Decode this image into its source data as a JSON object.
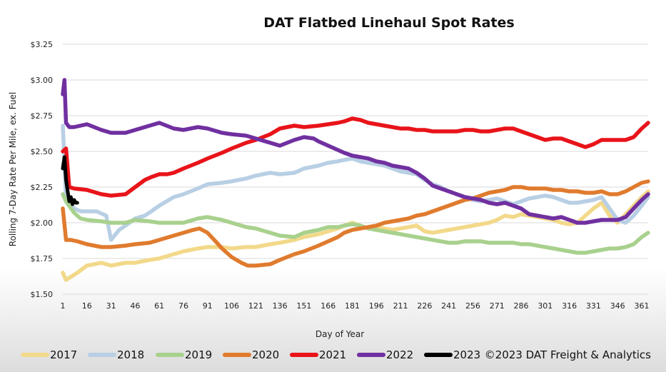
{
  "chart_data": {
    "type": "line",
    "title": "DAT Flatbed Linehaul Spot Rates",
    "xlabel": "Day of Year",
    "ylabel": "Rolling 7-Day Rate Per Mile, ex. Fuel",
    "xlim": [
      1,
      365
    ],
    "ylim": [
      1.5,
      3.25
    ],
    "x_ticks": [
      1,
      16,
      31,
      46,
      61,
      76,
      91,
      106,
      121,
      136,
      151,
      166,
      181,
      196,
      211,
      226,
      241,
      256,
      271,
      286,
      301,
      316,
      331,
      346,
      361
    ],
    "y_ticks": [
      {
        "value": 1.5,
        "label": "$1.50"
      },
      {
        "value": 1.75,
        "label": "$1.75"
      },
      {
        "value": 2.0,
        "label": "$2.00"
      },
      {
        "value": 2.25,
        "label": "$2.25"
      },
      {
        "value": 2.5,
        "label": "$2.50"
      },
      {
        "value": 2.75,
        "label": "$2.75"
      },
      {
        "value": 3.0,
        "label": "$3.00"
      },
      {
        "value": 3.25,
        "label": "$3.25"
      }
    ],
    "grid": true,
    "series": [
      {
        "name": "2017",
        "color": "#f2d98a",
        "x": [
          1,
          3,
          10,
          16,
          25,
          31,
          40,
          46,
          55,
          61,
          70,
          76,
          85,
          91,
          100,
          106,
          115,
          121,
          130,
          136,
          145,
          151,
          160,
          166,
          172,
          176,
          181,
          186,
          191,
          196,
          201,
          206,
          211,
          216,
          221,
          226,
          231,
          236,
          241,
          246,
          251,
          256,
          261,
          266,
          271,
          276,
          281,
          286,
          291,
          296,
          301,
          306,
          311,
          316,
          321,
          326,
          331,
          336,
          341,
          346,
          351,
          356,
          361,
          365
        ],
        "values": [
          1.65,
          1.6,
          1.65,
          1.7,
          1.72,
          1.7,
          1.72,
          1.72,
          1.74,
          1.75,
          1.78,
          1.8,
          1.82,
          1.83,
          1.83,
          1.82,
          1.83,
          1.83,
          1.85,
          1.86,
          1.88,
          1.9,
          1.92,
          1.94,
          1.96,
          1.98,
          2.0,
          1.98,
          1.96,
          1.97,
          1.96,
          1.95,
          1.96,
          1.97,
          1.98,
          1.94,
          1.93,
          1.94,
          1.95,
          1.96,
          1.97,
          1.98,
          1.99,
          2.0,
          2.02,
          2.05,
          2.04,
          2.06,
          2.05,
          2.04,
          2.03,
          2.02,
          2.0,
          1.99,
          2.0,
          2.05,
          2.1,
          2.14,
          2.05,
          2.0,
          2.06,
          2.12,
          2.18,
          2.22
        ]
      },
      {
        "name": "2018",
        "color": "#b8cfe4",
        "x": [
          1,
          3,
          8,
          12,
          16,
          22,
          28,
          31,
          36,
          40,
          46,
          52,
          56,
          61,
          70,
          76,
          85,
          91,
          100,
          106,
          115,
          121,
          130,
          136,
          145,
          151,
          160,
          166,
          172,
          176,
          181,
          186,
          191,
          196,
          201,
          206,
          211,
          216,
          221,
          226,
          231,
          236,
          241,
          246,
          251,
          256,
          261,
          266,
          271,
          276,
          281,
          286,
          291,
          296,
          301,
          306,
          311,
          316,
          321,
          326,
          331,
          336,
          341,
          346,
          351,
          356,
          361,
          365
        ],
        "values": [
          2.68,
          2.18,
          2.1,
          2.08,
          2.08,
          2.08,
          2.05,
          1.88,
          1.95,
          1.98,
          2.03,
          2.05,
          2.08,
          2.12,
          2.18,
          2.2,
          2.24,
          2.27,
          2.28,
          2.29,
          2.31,
          2.33,
          2.35,
          2.34,
          2.35,
          2.38,
          2.4,
          2.42,
          2.43,
          2.44,
          2.45,
          2.43,
          2.42,
          2.41,
          2.4,
          2.38,
          2.36,
          2.35,
          2.34,
          2.3,
          2.27,
          2.25,
          2.22,
          2.2,
          2.18,
          2.16,
          2.15,
          2.16,
          2.17,
          2.15,
          2.13,
          2.15,
          2.17,
          2.18,
          2.19,
          2.18,
          2.16,
          2.14,
          2.14,
          2.15,
          2.16,
          2.18,
          2.1,
          2.02,
          2.0,
          2.05,
          2.12,
          2.18
        ]
      },
      {
        "name": "2019",
        "color": "#a9d18e",
        "x": [
          1,
          3,
          8,
          12,
          16,
          25,
          31,
          40,
          46,
          55,
          61,
          70,
          76,
          85,
          91,
          100,
          106,
          115,
          121,
          130,
          136,
          145,
          151,
          160,
          166,
          172,
          176,
          181,
          186,
          191,
          196,
          201,
          206,
          211,
          216,
          221,
          226,
          231,
          236,
          241,
          246,
          251,
          256,
          261,
          266,
          271,
          276,
          281,
          286,
          291,
          296,
          301,
          306,
          311,
          316,
          321,
          326,
          331,
          336,
          341,
          346,
          351,
          356,
          361,
          365
        ],
        "values": [
          2.2,
          2.15,
          2.07,
          2.03,
          2.02,
          2.01,
          2.0,
          2.0,
          2.02,
          2.01,
          2.0,
          2.0,
          2.0,
          2.03,
          2.04,
          2.02,
          2.0,
          1.97,
          1.96,
          1.93,
          1.91,
          1.9,
          1.93,
          1.95,
          1.97,
          1.97,
          1.98,
          1.99,
          1.98,
          1.96,
          1.95,
          1.94,
          1.93,
          1.92,
          1.91,
          1.9,
          1.89,
          1.88,
          1.87,
          1.86,
          1.86,
          1.87,
          1.87,
          1.87,
          1.86,
          1.86,
          1.86,
          1.86,
          1.85,
          1.85,
          1.84,
          1.83,
          1.82,
          1.81,
          1.8,
          1.79,
          1.79,
          1.8,
          1.81,
          1.82,
          1.82,
          1.83,
          1.85,
          1.9,
          1.93
        ]
      },
      {
        "name": "2020",
        "color": "#e07b2e",
        "x": [
          1,
          3,
          6,
          10,
          16,
          25,
          31,
          40,
          46,
          55,
          61,
          70,
          76,
          82,
          86,
          91,
          96,
          100,
          106,
          112,
          116,
          121,
          130,
          136,
          145,
          151,
          160,
          166,
          172,
          176,
          181,
          186,
          191,
          196,
          201,
          206,
          211,
          216,
          221,
          226,
          231,
          236,
          241,
          246,
          251,
          256,
          261,
          266,
          271,
          276,
          281,
          286,
          291,
          296,
          301,
          306,
          311,
          316,
          321,
          326,
          331,
          336,
          341,
          346,
          351,
          356,
          361,
          365
        ],
        "values": [
          2.1,
          1.88,
          1.88,
          1.87,
          1.85,
          1.83,
          1.83,
          1.84,
          1.85,
          1.86,
          1.88,
          1.91,
          1.93,
          1.95,
          1.96,
          1.93,
          1.87,
          1.82,
          1.76,
          1.72,
          1.7,
          1.7,
          1.71,
          1.74,
          1.78,
          1.8,
          1.84,
          1.87,
          1.9,
          1.93,
          1.95,
          1.96,
          1.97,
          1.98,
          2.0,
          2.01,
          2.02,
          2.03,
          2.05,
          2.06,
          2.08,
          2.1,
          2.12,
          2.14,
          2.16,
          2.17,
          2.19,
          2.21,
          2.22,
          2.23,
          2.25,
          2.25,
          2.24,
          2.24,
          2.24,
          2.23,
          2.23,
          2.22,
          2.22,
          2.21,
          2.21,
          2.22,
          2.2,
          2.2,
          2.22,
          2.25,
          2.28,
          2.29
        ]
      },
      {
        "name": "2021",
        "color": "#e8141a",
        "x": [
          1,
          3,
          5,
          8,
          16,
          25,
          31,
          40,
          46,
          52,
          56,
          61,
          66,
          70,
          76,
          85,
          91,
          100,
          106,
          115,
          121,
          130,
          136,
          145,
          151,
          160,
          166,
          172,
          176,
          181,
          186,
          191,
          196,
          201,
          206,
          211,
          216,
          221,
          226,
          231,
          236,
          241,
          246,
          251,
          256,
          261,
          266,
          271,
          276,
          281,
          286,
          291,
          296,
          301,
          306,
          311,
          316,
          321,
          326,
          331,
          336,
          341,
          346,
          351,
          356,
          361,
          365
        ],
        "values": [
          2.5,
          2.52,
          2.25,
          2.24,
          2.23,
          2.2,
          2.19,
          2.2,
          2.25,
          2.3,
          2.32,
          2.34,
          2.34,
          2.35,
          2.38,
          2.42,
          2.45,
          2.49,
          2.52,
          2.56,
          2.58,
          2.62,
          2.66,
          2.68,
          2.67,
          2.68,
          2.69,
          2.7,
          2.71,
          2.73,
          2.72,
          2.7,
          2.69,
          2.68,
          2.67,
          2.66,
          2.66,
          2.65,
          2.65,
          2.64,
          2.64,
          2.64,
          2.64,
          2.65,
          2.65,
          2.64,
          2.64,
          2.65,
          2.66,
          2.66,
          2.64,
          2.62,
          2.6,
          2.58,
          2.59,
          2.59,
          2.57,
          2.55,
          2.53,
          2.55,
          2.58,
          2.58,
          2.58,
          2.58,
          2.6,
          2.66,
          2.7
        ]
      },
      {
        "name": "2022",
        "color": "#7030a0",
        "x": [
          1,
          2,
          3,
          5,
          8,
          16,
          25,
          31,
          40,
          46,
          55,
          61,
          70,
          76,
          85,
          91,
          100,
          106,
          115,
          121,
          130,
          136,
          145,
          151,
          157,
          160,
          166,
          172,
          176,
          181,
          186,
          191,
          196,
          201,
          206,
          211,
          216,
          221,
          226,
          231,
          236,
          241,
          246,
          251,
          256,
          261,
          266,
          271,
          276,
          281,
          286,
          291,
          296,
          301,
          306,
          311,
          316,
          321,
          326,
          331,
          336,
          341,
          346,
          351,
          356,
          361,
          365
        ],
        "values": [
          2.9,
          3.0,
          2.7,
          2.67,
          2.67,
          2.69,
          2.65,
          2.63,
          2.63,
          2.65,
          2.68,
          2.7,
          2.66,
          2.65,
          2.67,
          2.66,
          2.63,
          2.62,
          2.61,
          2.59,
          2.56,
          2.54,
          2.58,
          2.6,
          2.59,
          2.57,
          2.54,
          2.51,
          2.49,
          2.47,
          2.46,
          2.45,
          2.43,
          2.42,
          2.4,
          2.39,
          2.38,
          2.35,
          2.31,
          2.26,
          2.24,
          2.22,
          2.2,
          2.18,
          2.17,
          2.16,
          2.14,
          2.13,
          2.14,
          2.12,
          2.1,
          2.06,
          2.05,
          2.04,
          2.03,
          2.04,
          2.02,
          2.0,
          2.0,
          2.01,
          2.02,
          2.02,
          2.02,
          2.04,
          2.1,
          2.16,
          2.2
        ]
      },
      {
        "name": "2023",
        "color": "#000000",
        "x": [
          1,
          2,
          3,
          4,
          5,
          6,
          7,
          8,
          9,
          10
        ],
        "values": [
          2.38,
          2.46,
          2.3,
          2.22,
          2.15,
          2.18,
          2.13,
          2.16,
          2.14,
          2.14
        ]
      }
    ],
    "legend_position": "bottom"
  },
  "copyright": "©2023 DAT Freight & Analytics"
}
